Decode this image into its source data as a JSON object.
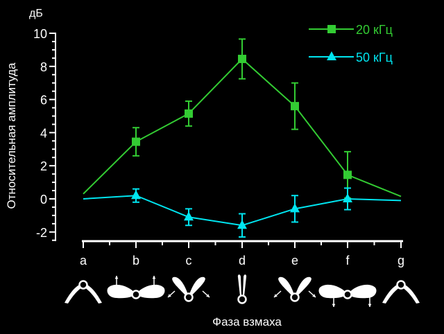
{
  "chart_data": {
    "type": "line",
    "unit_label": "дБ",
    "ylabel": "Относительная амплитуда",
    "xlabel": "Фаза взмаха",
    "categories": [
      "a",
      "b",
      "c",
      "d",
      "e",
      "f",
      "g"
    ],
    "ylim": [
      -2.5,
      10.5
    ],
    "yticks": [
      "10",
      "8",
      "6",
      "4",
      "2",
      "0",
      "-2"
    ],
    "ytick_values": [
      10,
      8,
      6,
      4,
      2,
      0,
      -2
    ],
    "legend_position": "top-right",
    "grid": false,
    "series": [
      {
        "name": "20 кГц",
        "color": "#33cc33",
        "marker": "square",
        "values": [
          0.3,
          3.45,
          5.15,
          8.45,
          5.6,
          1.45,
          0.15
        ],
        "errors": [
          null,
          0.85,
          0.75,
          1.2,
          1.4,
          1.4,
          null
        ],
        "marked": [
          false,
          true,
          true,
          true,
          true,
          true,
          false
        ]
      },
      {
        "name": "50 кГц",
        "color": "#00e5f0",
        "marker": "triangle",
        "values": [
          0.0,
          0.2,
          -1.1,
          -1.6,
          -0.6,
          0.0,
          -0.1
        ],
        "errors": [
          null,
          0.4,
          0.5,
          0.7,
          0.8,
          0.65,
          null
        ],
        "marked": [
          false,
          true,
          true,
          true,
          true,
          true,
          false
        ]
      }
    ],
    "wing_icons": [
      "wings-up-a",
      "wings-forward-b",
      "wings-spread-c",
      "wings-closed-d",
      "wings-spread-e",
      "wings-back-f",
      "wings-up-g"
    ]
  }
}
